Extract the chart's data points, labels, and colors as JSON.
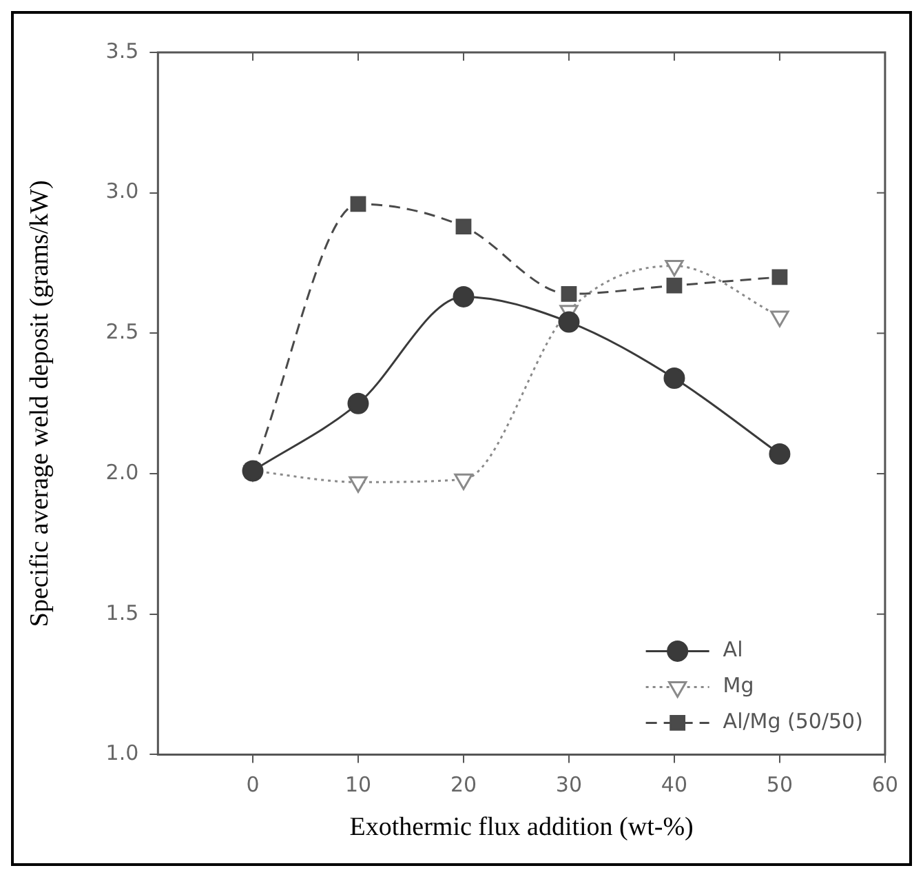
{
  "chart_data": {
    "type": "line",
    "xlabel": "Exothermic flux addition (wt-%)",
    "ylabel": "Specific average weld deposit (grams/kW)",
    "x": [
      0,
      10,
      20,
      30,
      40,
      50
    ],
    "series": [
      {
        "name": "Al",
        "color": "#3a3a3a",
        "marker": "circle",
        "line_style": "solid",
        "values": [
          2.01,
          2.25,
          2.63,
          2.54,
          2.34,
          2.07
        ]
      },
      {
        "name": "Mg",
        "color": "#8a8a8a",
        "marker": "triangle",
        "line_style": "dotted",
        "values": [
          2.01,
          1.97,
          1.98,
          2.58,
          2.74,
          2.56
        ]
      },
      {
        "name": "Al/Mg (50/50)",
        "color": "#4a4a4a",
        "marker": "square",
        "line_style": "dashed",
        "values": [
          2.01,
          2.96,
          2.88,
          2.64,
          2.67,
          2.7
        ]
      }
    ],
    "xlim": [
      -9,
      60
    ],
    "xticks": [
      0,
      10,
      20,
      30,
      40,
      50,
      60
    ],
    "ylim": [
      1.0,
      3.5
    ],
    "yticks": [
      {
        "value": 1.0,
        "label": "1.0"
      },
      {
        "value": 1.5,
        "label": "1.5"
      },
      {
        "value": 2.0,
        "label": "2.0"
      },
      {
        "value": 2.5,
        "label": "2.5"
      },
      {
        "value": 3.0,
        "label": "3.0"
      },
      {
        "value": 3.5,
        "label": "3.5"
      }
    ],
    "grid": false,
    "legend": "bottom right"
  }
}
